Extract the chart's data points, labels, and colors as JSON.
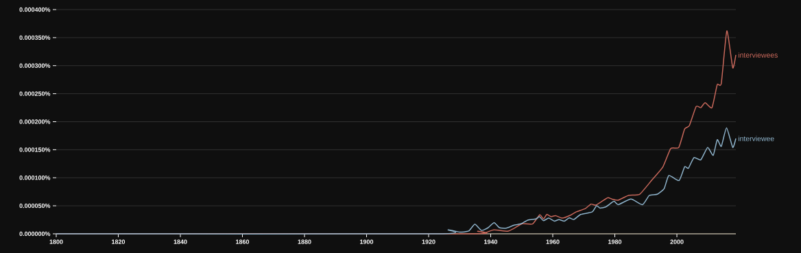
{
  "chart_data": {
    "type": "line",
    "xlim": [
      1800,
      2019
    ],
    "ylim": [
      0,
      0.0004
    ],
    "xticks": [
      1800,
      1820,
      1840,
      1860,
      1880,
      1900,
      1920,
      1940,
      1960,
      1980,
      2000
    ],
    "yticks": [
      {
        "value": 0,
        "label": "0.000000%"
      },
      {
        "value": 5e-05,
        "label": "0.000050%"
      },
      {
        "value": 0.0001,
        "label": "0.000100%"
      },
      {
        "value": 0.00015,
        "label": "0.000150%"
      },
      {
        "value": 0.0002,
        "label": "0.000200%"
      },
      {
        "value": 0.00025,
        "label": "0.000250%"
      },
      {
        "value": 0.0003,
        "label": "0.000300%"
      },
      {
        "value": 0.00035,
        "label": "0.000350%"
      },
      {
        "value": 0.0004,
        "label": "0.000400%"
      }
    ],
    "grid": "y",
    "legend": false,
    "series": [
      {
        "name": "interviewees",
        "color": "#c8685b",
        "x": [
          1800,
          1933,
          1935.8,
          1938.2,
          1941,
          1945.4,
          1947.6,
          1950.2,
          1953.5,
          1955.8,
          1957,
          1958.1,
          1959.5,
          1960.9,
          1963.1,
          1966,
          1967.5,
          1970.5,
          1972.3,
          1973.8,
          1975.6,
          1977.8,
          1979.3,
          1981.1,
          1984.4,
          1988,
          1991.8,
          1995.5,
          1998,
          2000.6,
          2002.5,
          2004,
          2006.2,
          2007.7,
          2009.1,
          2011.3,
          2013,
          2014.3,
          2016.1,
          2018,
          2019
        ],
        "values": [
          0,
          0,
          4.5e-06,
          2e-06,
          7e-06,
          4.5e-06,
          1e-05,
          1.8e-05,
          1.75e-05,
          3.4e-05,
          2.65e-05,
          3.45e-05,
          3.05e-05,
          3.25e-05,
          2.8e-05,
          3.4e-05,
          3.9e-05,
          4.5e-05,
          5.3e-05,
          5.1e-05,
          5.7e-05,
          6.45e-05,
          6.15e-05,
          6e-05,
          6.85e-05,
          7.06e-05,
          9.5e-05,
          0.0001195,
          0.000152,
          0.000154,
          0.000187,
          0.000193,
          0.000227,
          0.000225,
          0.000234,
          0.000225,
          0.000266,
          0.000268,
          0.000362,
          0.000296,
          0.000319
        ]
      },
      {
        "name": "interviewee",
        "color": "#8fb4cc",
        "x": [
          1800,
          1923.3,
          1926.3,
          1930,
          1932.9,
          1934.9,
          1937,
          1939.2,
          1941.1,
          1942.8,
          1945,
          1947.6,
          1949.8,
          1952,
          1954.6,
          1955.7,
          1957,
          1958.7,
          1960.5,
          1962,
          1963.7,
          1965.3,
          1966.8,
          1969,
          1972.7,
          1974.1,
          1975.2,
          1977.1,
          1979.7,
          1981.1,
          1985.2,
          1988.9,
          1991.1,
          1993.7,
          1995.9,
          1997.4,
          2000.7,
          2002.5,
          2003.7,
          2005.5,
          2007.7,
          2009.9,
          2011.7,
          2013,
          2014.3,
          2016,
          2018,
          2019
        ],
        "values": [
          0,
          0,
          7e-06,
          3e-06,
          5e-06,
          1.7e-05,
          6e-06,
          1.1e-05,
          2e-05,
          1.1e-05,
          1e-05,
          1.55e-05,
          1.8e-05,
          2.45e-05,
          2.65e-05,
          3.05e-05,
          2.35e-05,
          2.8e-05,
          2.25e-05,
          2.55e-05,
          2.25e-05,
          2.85e-05,
          2.55e-05,
          3.45e-05,
          3.9e-05,
          5e-05,
          4.6e-05,
          4.8e-05,
          5.8e-05,
          5.2e-05,
          6.2e-05,
          5.2e-05,
          6.85e-05,
          7.06e-05,
          8.07e-05,
          0.000104,
          9.5e-05,
          0.0001195,
          0.000117,
          0.000136,
          0.000132,
          0.000154,
          0.00014,
          0.000168,
          0.000156,
          0.000189,
          0.000154,
          0.00017
        ]
      }
    ]
  }
}
